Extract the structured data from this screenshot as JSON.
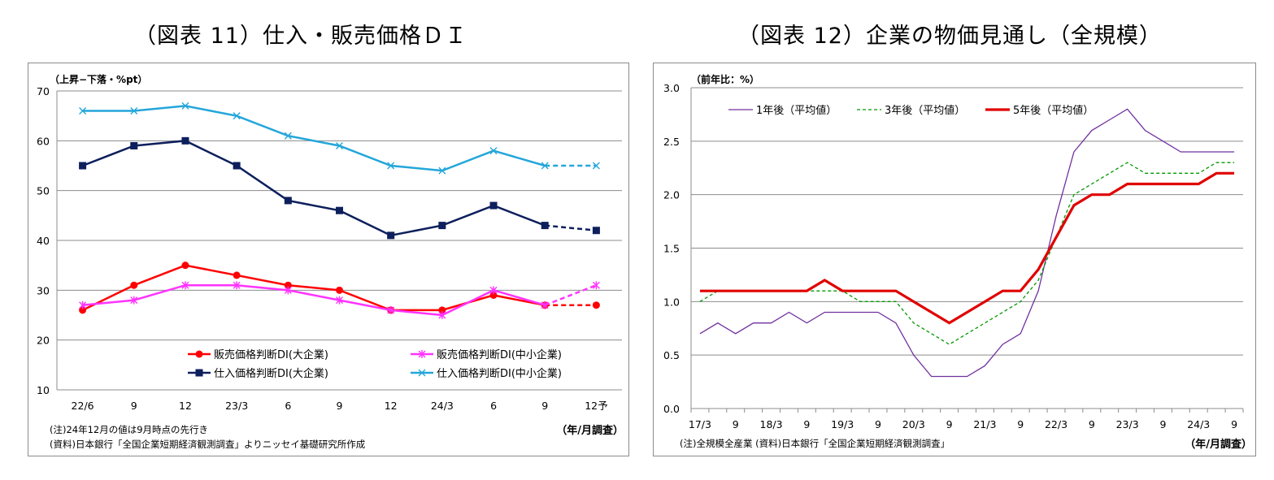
{
  "titles": {
    "left": "（図表 11）仕入・販売価格ＤＩ",
    "right": "（図表 12）企業の物価見通し（全規模）"
  },
  "chart_data": [
    {
      "type": "line",
      "title": "（図表 11）仕入・販売価格ＤＩ",
      "ylabel": "（上昇−下落・%pt）",
      "xlabel": "（年/月調査）",
      "ylim": [
        10,
        70
      ],
      "yticks": [
        10,
        20,
        30,
        40,
        50,
        60,
        70
      ],
      "grid": true,
      "legend_position": "bottom-right",
      "categories": [
        "22/6",
        "9",
        "12",
        "23/3",
        "6",
        "9",
        "12",
        "24/3",
        "6",
        "9",
        "12予"
      ],
      "forecast_index": 10,
      "series": [
        {
          "name": "販売価格判断DI(大企業)",
          "color": "#ff0000",
          "marker": "circle",
          "values": [
            26,
            31,
            35,
            33,
            31,
            30,
            26,
            26,
            29,
            27,
            27
          ]
        },
        {
          "name": "販売価格判断DI(中小企業)",
          "color": "#ff33ff",
          "marker": "star",
          "values": [
            27,
            28,
            31,
            31,
            30,
            28,
            26,
            25,
            30,
            27,
            31
          ]
        },
        {
          "name": "仕入価格判断DI(大企業)",
          "color": "#0d1f5c",
          "marker": "square",
          "values": [
            55,
            59,
            60,
            55,
            48,
            46,
            41,
            43,
            47,
            43,
            42
          ]
        },
        {
          "name": "仕入価格判断DI(中小企業)",
          "color": "#23a6da",
          "marker": "x",
          "values": [
            66,
            66,
            67,
            65,
            61,
            59,
            55,
            54,
            58,
            55,
            55
          ]
        }
      ],
      "notes": [
        "(注)24年12月の値は9月時点の先行き",
        "(資料)日本銀行「全国企業短期経済観測調査」よりニッセイ基礎研究所作成"
      ]
    },
    {
      "type": "line",
      "title": "（図表 12）企業の物価見通し（全規模）",
      "ylabel": "（前年比：%）",
      "xlabel": "（年/月調査）",
      "ylim": [
        0,
        3
      ],
      "yticks": [
        "0.0",
        "0.5",
        "1.0",
        "1.5",
        "2.0",
        "2.5",
        "3.0"
      ],
      "grid": true,
      "legend_position": "top",
      "x_tick_labels": [
        "17/3",
        "9",
        "18/3",
        "9",
        "19/3",
        "9",
        "20/3",
        "9",
        "21/3",
        "9",
        "22/3",
        "9",
        "23/3",
        "9",
        "24/3",
        "9"
      ],
      "x_quarters": [
        "17/3",
        "17/6",
        "17/9",
        "17/12",
        "18/3",
        "18/6",
        "18/9",
        "18/12",
        "19/3",
        "19/6",
        "19/9",
        "19/12",
        "20/3",
        "20/6",
        "20/9",
        "20/12",
        "21/3",
        "21/6",
        "21/9",
        "21/12",
        "22/3",
        "22/6",
        "22/9",
        "22/12",
        "23/3",
        "23/6",
        "23/9",
        "23/12",
        "24/3",
        "24/6",
        "24/9"
      ],
      "series": [
        {
          "name": "1年後（平均値）",
          "color": "#7030a0",
          "style": "solid",
          "values": [
            0.7,
            0.8,
            0.7,
            0.8,
            0.8,
            0.9,
            0.8,
            0.9,
            0.9,
            0.9,
            0.9,
            0.8,
            0.5,
            0.3,
            0.3,
            0.3,
            0.4,
            0.6,
            0.7,
            1.1,
            1.8,
            2.4,
            2.6,
            2.7,
            2.8,
            2.6,
            2.5,
            2.4,
            2.4,
            2.4,
            2.4
          ]
        },
        {
          "name": "3年後（平均値）",
          "color": "#009900",
          "style": "dashed",
          "values": [
            1.0,
            1.1,
            1.1,
            1.1,
            1.1,
            1.1,
            1.1,
            1.1,
            1.1,
            1.0,
            1.0,
            1.0,
            0.8,
            0.7,
            0.6,
            0.7,
            0.8,
            0.9,
            1.0,
            1.2,
            1.6,
            2.0,
            2.1,
            2.2,
            2.3,
            2.2,
            2.2,
            2.2,
            2.2,
            2.3,
            2.3
          ]
        },
        {
          "name": "5年後（平均値）",
          "color": "#e00000",
          "style": "bold",
          "values": [
            1.1,
            1.1,
            1.1,
            1.1,
            1.1,
            1.1,
            1.1,
            1.2,
            1.1,
            1.1,
            1.1,
            1.1,
            1.0,
            0.9,
            0.8,
            0.9,
            1.0,
            1.1,
            1.1,
            1.3,
            1.6,
            1.9,
            2.0,
            2.0,
            2.1,
            2.1,
            2.1,
            2.1,
            2.1,
            2.2,
            2.2
          ]
        }
      ],
      "notes": [
        "(注)全規模全産業 (資料)日本銀行「全国企業短期経済観測調査」"
      ]
    }
  ]
}
